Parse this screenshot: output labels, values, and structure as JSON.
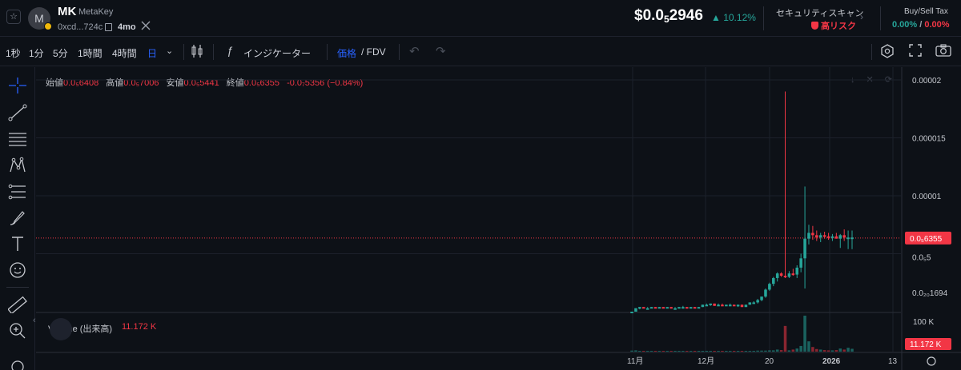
{
  "header": {
    "star": "☆",
    "avatar_letter": "M",
    "symbol": "MK",
    "name": "MetaKey",
    "address": "0xcd...724c",
    "age": "4mo",
    "price_prefix": "$0.0",
    "price_sub": "5",
    "price_suffix": "2946",
    "change": "▲ 10.12%",
    "security_label": "セキュリティスキャン",
    "risk_label": "高リスク",
    "tax_label": "Buy/Sell Tax",
    "buy_tax": "0.00%",
    "tax_sep": " / ",
    "sell_tax": "0.00%"
  },
  "toolbar": {
    "timeframes": [
      "1秒",
      "1分",
      "5分",
      "1時間",
      "4時間",
      "日"
    ],
    "active_timeframe": "日",
    "indicators_label": "インジケーター",
    "price_label": "価格",
    "fdv_label": "/ FDV"
  },
  "legend": {
    "open_label": "始値",
    "open": "0.0₅6408",
    "high_label": "高値",
    "high": "0.0₅7006",
    "low_label": "安値",
    "low": "0.0₅5441",
    "close_label": "終値",
    "close": "0.0₅6355",
    "change": "-0.0₇5356 (−0.84%)",
    "volume_label": "Volume (出来高)",
    "volume_value": "11.172 K"
  },
  "colors": {
    "up": "#26a69a",
    "down": "#f23645",
    "accent": "#2962ff",
    "background": "#0d1117",
    "grid": "#1c212b"
  },
  "chart_data": {
    "type": "candlestick",
    "x_ticks": [
      "11月",
      "12月",
      "20",
      "2026",
      "13"
    ],
    "y_ticks": [
      "0.00002",
      "0.000015",
      "0.00001",
      "0.0₅5",
      "0.0₂₀1694"
    ],
    "price_label": "0.0₅6355",
    "volume_axis_label": "100 K",
    "volume_price_label": "11.172 K",
    "ylim": [
      0,
      2e-05
    ],
    "last_close": 6.355e-06,
    "candles": [
      {
        "o": 0.0,
        "h": 0.0,
        "l": 0.0,
        "c": 0.0,
        "v": 4
      },
      {
        "o": 0.0,
        "h": 3e-07,
        "l": 0.0,
        "c": 3e-07,
        "v": 5
      },
      {
        "o": 3e-07,
        "h": 4e-07,
        "l": 2e-07,
        "c": 4e-07,
        "v": 3
      },
      {
        "o": 4e-07,
        "h": 4e-07,
        "l": 3e-07,
        "c": 3e-07,
        "v": 2
      },
      {
        "o": 3e-07,
        "h": 4e-07,
        "l": 3e-07,
        "c": 3e-07,
        "v": 2
      },
      {
        "o": 3e-07,
        "h": 4e-07,
        "l": 3e-07,
        "c": 4e-07,
        "v": 2
      },
      {
        "o": 4e-07,
        "h": 4e-07,
        "l": 3e-07,
        "c": 3e-07,
        "v": 2
      },
      {
        "o": 3e-07,
        "h": 4e-07,
        "l": 3e-07,
        "c": 4e-07,
        "v": 2
      },
      {
        "o": 4e-07,
        "h": 4e-07,
        "l": 3e-07,
        "c": 3e-07,
        "v": 2
      },
      {
        "o": 3e-07,
        "h": 4e-07,
        "l": 3e-07,
        "c": 4e-07,
        "v": 2
      },
      {
        "o": 4e-07,
        "h": 4e-07,
        "l": 3e-07,
        "c": 3e-07,
        "v": 2
      },
      {
        "o": 3e-07,
        "h": 4e-07,
        "l": 3e-07,
        "c": 3e-07,
        "v": 2
      },
      {
        "o": 3e-07,
        "h": 4e-07,
        "l": 3e-07,
        "c": 4e-07,
        "v": 2
      },
      {
        "o": 4e-07,
        "h": 5e-07,
        "l": 3e-07,
        "c": 4e-07,
        "v": 2
      },
      {
        "o": 4e-07,
        "h": 4e-07,
        "l": 3e-07,
        "c": 3e-07,
        "v": 2
      },
      {
        "o": 3e-07,
        "h": 4e-07,
        "l": 3e-07,
        "c": 4e-07,
        "v": 2
      },
      {
        "o": 4e-07,
        "h": 4e-07,
        "l": 3e-07,
        "c": 3e-07,
        "v": 2
      },
      {
        "o": 3e-07,
        "h": 4e-07,
        "l": 3e-07,
        "c": 4e-07,
        "v": 2
      },
      {
        "o": 4e-07,
        "h": 6e-07,
        "l": 4e-07,
        "c": 6e-07,
        "v": 3
      },
      {
        "o": 6e-07,
        "h": 7e-07,
        "l": 5e-07,
        "c": 6e-07,
        "v": 2
      },
      {
        "o": 6e-07,
        "h": 7e-07,
        "l": 5e-07,
        "c": 7e-07,
        "v": 2
      },
      {
        "o": 7e-07,
        "h": 7e-07,
        "l": 5e-07,
        "c": 5e-07,
        "v": 2
      },
      {
        "o": 5e-07,
        "h": 7e-07,
        "l": 5e-07,
        "c": 6e-07,
        "v": 2
      },
      {
        "o": 6e-07,
        "h": 7e-07,
        "l": 5e-07,
        "c": 5e-07,
        "v": 2
      },
      {
        "o": 5e-07,
        "h": 6e-07,
        "l": 5e-07,
        "c": 6e-07,
        "v": 2
      },
      {
        "o": 6e-07,
        "h": 7e-07,
        "l": 5e-07,
        "c": 6e-07,
        "v": 2
      },
      {
        "o": 6e-07,
        "h": 6e-07,
        "l": 5e-07,
        "c": 5e-07,
        "v": 2
      },
      {
        "o": 5e-07,
        "h": 6e-07,
        "l": 4e-07,
        "c": 6e-07,
        "v": 3
      },
      {
        "o": 6e-07,
        "h": 6e-07,
        "l": 4e-07,
        "c": 4e-07,
        "v": 3
      },
      {
        "o": 4e-07,
        "h": 6e-07,
        "l": 4e-07,
        "c": 6e-07,
        "v": 3
      },
      {
        "o": 6e-07,
        "h": 8e-07,
        "l": 6e-07,
        "c": 8e-07,
        "v": 3
      },
      {
        "o": 8e-07,
        "h": 9e-07,
        "l": 7e-07,
        "c": 8e-07,
        "v": 3
      },
      {
        "o": 8e-07,
        "h": 1.1e-06,
        "l": 7e-07,
        "c": 1e-06,
        "v": 4
      },
      {
        "o": 1e-06,
        "h": 1.3e-06,
        "l": 9e-07,
        "c": 1.3e-06,
        "v": 4
      },
      {
        "o": 1.3e-06,
        "h": 2e-06,
        "l": 1.2e-06,
        "c": 1.9e-06,
        "v": 4
      },
      {
        "o": 1.9e-06,
        "h": 2.5e-06,
        "l": 1.8e-06,
        "c": 2.4e-06,
        "v": 5
      },
      {
        "o": 2.4e-06,
        "h": 3e-06,
        "l": 2.2e-06,
        "c": 2.9e-06,
        "v": 5
      },
      {
        "o": 2.9e-06,
        "h": 3.4e-06,
        "l": 2.6e-06,
        "c": 3.3e-06,
        "v": 8
      },
      {
        "o": 3.3e-06,
        "h": 3.4e-06,
        "l": 3e-06,
        "c": 3.1e-06,
        "v": 6
      },
      {
        "o": 3.1e-06,
        "h": 1.9e-05,
        "l": 2.9e-06,
        "c": 3e-06,
        "v": 100
      },
      {
        "o": 3e-06,
        "h": 3.5e-06,
        "l": 2.9e-06,
        "c": 3.3e-06,
        "v": 5
      },
      {
        "o": 3.3e-06,
        "h": 3.7e-06,
        "l": 3.1e-06,
        "c": 3.2e-06,
        "v": 8
      },
      {
        "o": 3.2e-06,
        "h": 4e-06,
        "l": 2.9e-06,
        "c": 3.8e-06,
        "v": 12
      },
      {
        "o": 3.8e-06,
        "h": 5e-06,
        "l": 3.4e-06,
        "c": 4.6e-06,
        "v": 22
      },
      {
        "o": 4.6e-06,
        "h": 1.08e-05,
        "l": 2e-06,
        "c": 6.3e-06,
        "v": 140
      },
      {
        "o": 6.3e-06,
        "h": 7.5e-06,
        "l": 5.8e-06,
        "c": 6.8e-06,
        "v": 40
      },
      {
        "o": 6.8e-06,
        "h": 7.4e-06,
        "l": 6.2e-06,
        "c": 6.6e-06,
        "v": 18
      },
      {
        "o": 6.6e-06,
        "h": 7e-06,
        "l": 6.1e-06,
        "c": 6.4e-06,
        "v": 10
      },
      {
        "o": 6.4e-06,
        "h": 6.8e-06,
        "l": 6e-06,
        "c": 6.6e-06,
        "v": 8
      },
      {
        "o": 6.6e-06,
        "h": 6.9e-06,
        "l": 6.3e-06,
        "c": 6.5e-06,
        "v": 6
      },
      {
        "o": 6.5e-06,
        "h": 6.8e-06,
        "l": 6.2e-06,
        "c": 6.4e-06,
        "v": 5
      },
      {
        "o": 6.4e-06,
        "h": 6.7e-06,
        "l": 6.1e-06,
        "c": 6.5e-06,
        "v": 5
      },
      {
        "o": 6.5e-06,
        "h": 6.8e-06,
        "l": 6.3e-06,
        "c": 6.3e-06,
        "v": 6
      },
      {
        "o": 6.3e-06,
        "h": 6.7e-06,
        "l": 5.5e-06,
        "c": 6.6e-06,
        "v": 12
      },
      {
        "o": 6.6e-06,
        "h": 7.1e-06,
        "l": 6.1e-06,
        "c": 6.4e-06,
        "v": 8
      },
      {
        "o": 6.4e-06,
        "h": 7e-06,
        "l": 5.4e-06,
        "c": 6.4e-06,
        "v": 15
      },
      {
        "o": 6.4e-06,
        "h": 7e-06,
        "l": 5.4e-06,
        "c": 6.4e-06,
        "v": 11
      }
    ]
  }
}
